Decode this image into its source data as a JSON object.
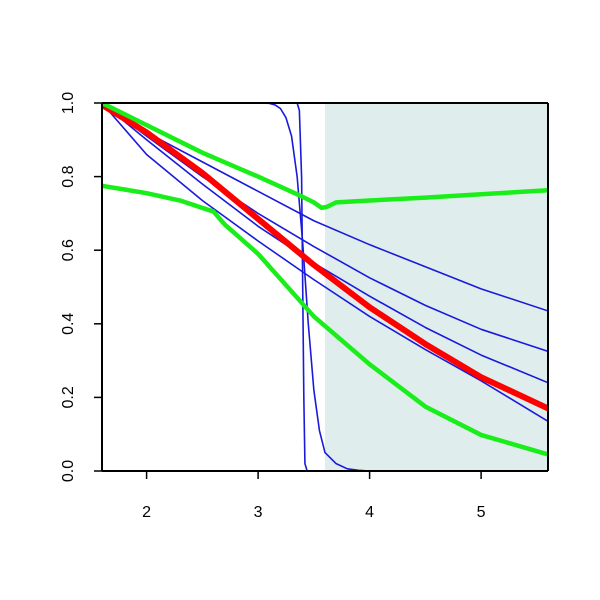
{
  "chart_data": {
    "type": "line",
    "title": "",
    "xlabel": "",
    "ylabel": "",
    "xlim": [
      1.6,
      5.6
    ],
    "ylim": [
      0.0,
      1.0
    ],
    "x_ticks": [
      2,
      3,
      4,
      5
    ],
    "x_tick_labels": [
      "2",
      "3",
      "4",
      "5"
    ],
    "y_ticks": [
      0.0,
      0.2,
      0.4,
      0.6,
      0.8,
      1.0
    ],
    "y_tick_labels": [
      "0.0",
      "0.2",
      "0.4",
      "0.6",
      "0.8",
      "1.0"
    ],
    "grid": false,
    "legend": "none",
    "shaded_region": {
      "x_from": 3.6,
      "x_to": 5.6,
      "color": "#e0eded"
    },
    "colors": {
      "blue": "#1a1adb",
      "red": "#ff0000",
      "green": "#1aee1a",
      "axis": "#000000"
    },
    "series": [
      {
        "color": "blue",
        "width": 1.6,
        "points": [
          [
            1.6,
            1.0
          ],
          [
            2.0,
            0.92
          ],
          [
            2.5,
            0.84
          ],
          [
            3.0,
            0.76
          ],
          [
            3.5,
            0.68
          ],
          [
            4.0,
            0.615
          ],
          [
            4.5,
            0.555
          ],
          [
            5.0,
            0.495
          ],
          [
            5.6,
            0.435
          ]
        ]
      },
      {
        "color": "blue",
        "width": 1.6,
        "points": [
          [
            1.6,
            1.0
          ],
          [
            2.0,
            0.91
          ],
          [
            2.5,
            0.8
          ],
          [
            3.0,
            0.7
          ],
          [
            3.5,
            0.61
          ],
          [
            4.0,
            0.525
          ],
          [
            4.5,
            0.45
          ],
          [
            5.0,
            0.385
          ],
          [
            5.6,
            0.325
          ]
        ]
      },
      {
        "color": "blue",
        "width": 1.6,
        "points": [
          [
            1.6,
            1.0
          ],
          [
            2.0,
            0.9
          ],
          [
            2.5,
            0.78
          ],
          [
            3.0,
            0.665
          ],
          [
            3.5,
            0.565
          ],
          [
            4.0,
            0.475
          ],
          [
            4.5,
            0.39
          ],
          [
            5.0,
            0.315
          ],
          [
            5.6,
            0.24
          ]
        ]
      },
      {
        "color": "blue",
        "width": 1.6,
        "points": [
          [
            1.6,
            1.0
          ],
          [
            2.0,
            0.86
          ],
          [
            2.5,
            0.735
          ],
          [
            3.0,
            0.625
          ],
          [
            3.5,
            0.52
          ],
          [
            4.0,
            0.42
          ],
          [
            4.5,
            0.33
          ],
          [
            5.0,
            0.245
          ],
          [
            5.6,
            0.135
          ]
        ]
      },
      {
        "color": "blue",
        "width": 1.6,
        "points": [
          [
            1.6,
            1.0
          ],
          [
            2.5,
            1.0
          ],
          [
            3.0,
            1.0
          ],
          [
            3.1,
            0.999
          ],
          [
            3.15,
            0.995
          ],
          [
            3.2,
            0.985
          ],
          [
            3.25,
            0.96
          ],
          [
            3.3,
            0.91
          ],
          [
            3.35,
            0.8
          ],
          [
            3.4,
            0.62
          ],
          [
            3.45,
            0.4
          ],
          [
            3.5,
            0.22
          ],
          [
            3.55,
            0.11
          ],
          [
            3.6,
            0.05
          ],
          [
            3.7,
            0.02
          ],
          [
            3.8,
            0.006
          ],
          [
            3.9,
            0.002
          ],
          [
            4.0,
            0.0
          ],
          [
            5.6,
            0.0
          ]
        ]
      },
      {
        "color": "blue",
        "width": 1.6,
        "points": [
          [
            1.6,
            1.0
          ],
          [
            3.0,
            1.0
          ],
          [
            3.35,
            1.0
          ],
          [
            3.37,
            0.98
          ],
          [
            3.39,
            0.8
          ],
          [
            3.4,
            0.5
          ],
          [
            3.41,
            0.2
          ],
          [
            3.42,
            0.02
          ],
          [
            3.44,
            0.0
          ],
          [
            5.6,
            0.0
          ]
        ]
      },
      {
        "color": "red",
        "width": 6,
        "points": [
          [
            1.6,
            0.995
          ],
          [
            2.0,
            0.92
          ],
          [
            2.5,
            0.81
          ],
          [
            3.0,
            0.685
          ],
          [
            3.5,
            0.56
          ],
          [
            4.0,
            0.445
          ],
          [
            4.5,
            0.345
          ],
          [
            5.0,
            0.255
          ],
          [
            5.6,
            0.17
          ]
        ]
      },
      {
        "color": "green",
        "width": 4.5,
        "points": [
          [
            1.6,
            1.0
          ],
          [
            2.0,
            0.94
          ],
          [
            2.5,
            0.865
          ],
          [
            3.0,
            0.8
          ],
          [
            3.4,
            0.745
          ],
          [
            3.5,
            0.73
          ],
          [
            3.57,
            0.715
          ],
          [
            3.62,
            0.718
          ],
          [
            3.7,
            0.73
          ],
          [
            4.0,
            0.735
          ],
          [
            4.5,
            0.743
          ],
          [
            5.0,
            0.752
          ],
          [
            5.6,
            0.763
          ]
        ]
      },
      {
        "color": "green",
        "width": 4.5,
        "points": [
          [
            1.6,
            0.775
          ],
          [
            2.0,
            0.755
          ],
          [
            2.3,
            0.735
          ],
          [
            2.6,
            0.705
          ],
          [
            2.7,
            0.67
          ],
          [
            3.0,
            0.59
          ],
          [
            3.5,
            0.42
          ],
          [
            4.0,
            0.29
          ],
          [
            4.5,
            0.175
          ],
          [
            5.0,
            0.098
          ],
          [
            5.6,
            0.045
          ]
        ]
      }
    ]
  }
}
